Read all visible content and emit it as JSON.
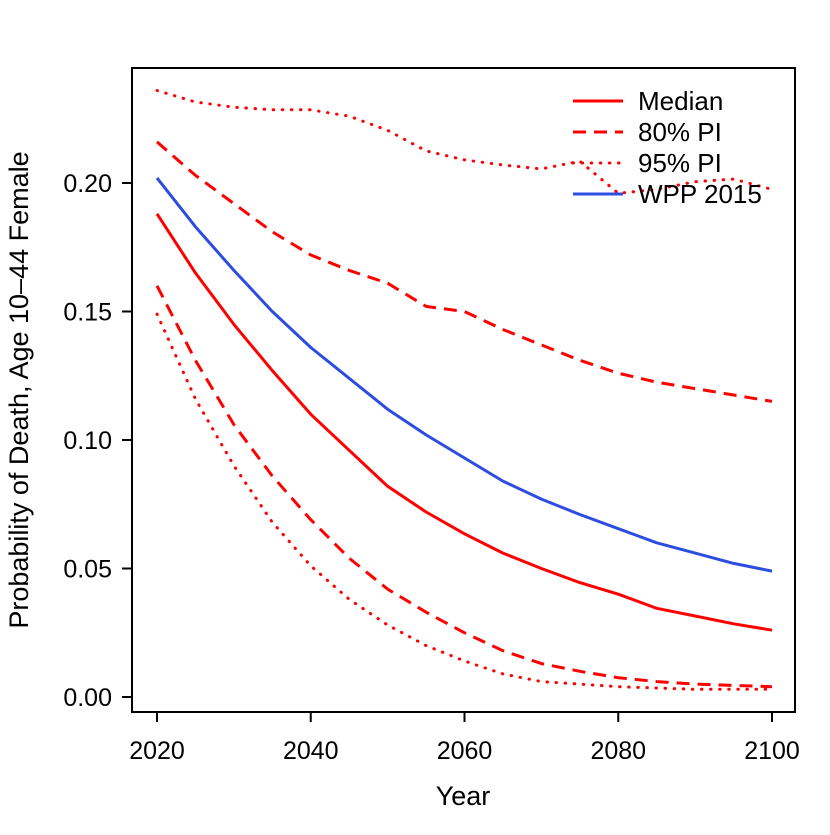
{
  "figure": {
    "background_color": "#ffffff",
    "frame_color": "#000000"
  },
  "colors": {
    "projection_red": "#ff0000",
    "wpp_blue": "#2d4de0",
    "axis_black": "#000000"
  },
  "chart_data": {
    "type": "line",
    "title": "",
    "xlabel": "Year",
    "ylabel": "Probability of Death, Age 10–44 Female",
    "grid": false,
    "xlim": [
      2017,
      2103
    ],
    "ylim": [
      0,
      0.245
    ],
    "x_ticks": {
      "values": [
        2020,
        2040,
        2060,
        2080,
        2100
      ],
      "labels": [
        "2020",
        "2040",
        "2060",
        "2080",
        "2100"
      ]
    },
    "y_ticks": {
      "values": [
        0.0,
        0.05,
        0.1,
        0.15,
        0.2
      ],
      "labels": [
        "0.00",
        "0.05",
        "0.10",
        "0.15",
        "0.20"
      ]
    },
    "x": [
      2020,
      2025,
      2030,
      2035,
      2040,
      2045,
      2050,
      2055,
      2060,
      2065,
      2070,
      2075,
      2080,
      2085,
      2090,
      2095,
      2100
    ],
    "series": [
      {
        "id": "pi95-upper",
        "name": "95% PI upper bound",
        "color": "#ff0000",
        "style": "dotted",
        "values": [
          0.236,
          0.2315,
          0.2295,
          0.2285,
          0.2285,
          0.226,
          0.2205,
          0.2125,
          0.209,
          0.207,
          0.2055,
          0.2085,
          0.196,
          0.1975,
          0.2005,
          0.2015,
          0.1975
        ]
      },
      {
        "id": "pi80-upper",
        "name": "80% PI upper bound",
        "color": "#ff0000",
        "style": "dashed",
        "values": [
          0.216,
          0.203,
          0.192,
          0.181,
          0.172,
          0.166,
          0.161,
          0.152,
          0.15,
          0.143,
          0.137,
          0.131,
          0.126,
          0.1225,
          0.12,
          0.1175,
          0.115
        ]
      },
      {
        "id": "wpp2015",
        "name": "WPP 2015",
        "color": "#2d4de0",
        "style": "solid",
        "values": [
          0.202,
          0.183,
          0.166,
          0.15,
          0.136,
          0.124,
          0.112,
          0.102,
          0.093,
          0.084,
          0.077,
          0.071,
          0.0655,
          0.06,
          0.056,
          0.052,
          0.049
        ]
      },
      {
        "id": "median",
        "name": "Median",
        "color": "#ff0000",
        "style": "solid",
        "values": [
          0.188,
          0.165,
          0.145,
          0.127,
          0.11,
          0.096,
          0.082,
          0.072,
          0.0635,
          0.056,
          0.05,
          0.0445,
          0.04,
          0.0345,
          0.0315,
          0.0285,
          0.026
        ]
      },
      {
        "id": "pi80-lower",
        "name": "80% PI lower bound",
        "color": "#ff0000",
        "style": "dashed",
        "values": [
          0.16,
          0.131,
          0.106,
          0.086,
          0.069,
          0.054,
          0.042,
          0.033,
          0.025,
          0.018,
          0.013,
          0.01,
          0.0075,
          0.006,
          0.005,
          0.0045,
          0.004
        ]
      },
      {
        "id": "pi95-lower",
        "name": "95% PI lower bound",
        "color": "#ff0000",
        "style": "dotted",
        "values": [
          0.149,
          0.116,
          0.09,
          0.068,
          0.051,
          0.038,
          0.028,
          0.02,
          0.014,
          0.009,
          0.006,
          0.005,
          0.004,
          0.0035,
          0.003,
          0.003,
          0.003
        ]
      }
    ],
    "legend": {
      "position": "top-right",
      "entries": [
        {
          "id": "median",
          "label": "Median",
          "color": "#ff0000",
          "style": "solid"
        },
        {
          "id": "pi80",
          "label": "80% PI",
          "color": "#ff0000",
          "style": "dashed"
        },
        {
          "id": "pi95",
          "label": "95% PI",
          "color": "#ff0000",
          "style": "dotted"
        },
        {
          "id": "wpp2015",
          "label": "WPP 2015",
          "color": "#2d4de0",
          "style": "solid"
        }
      ]
    }
  }
}
